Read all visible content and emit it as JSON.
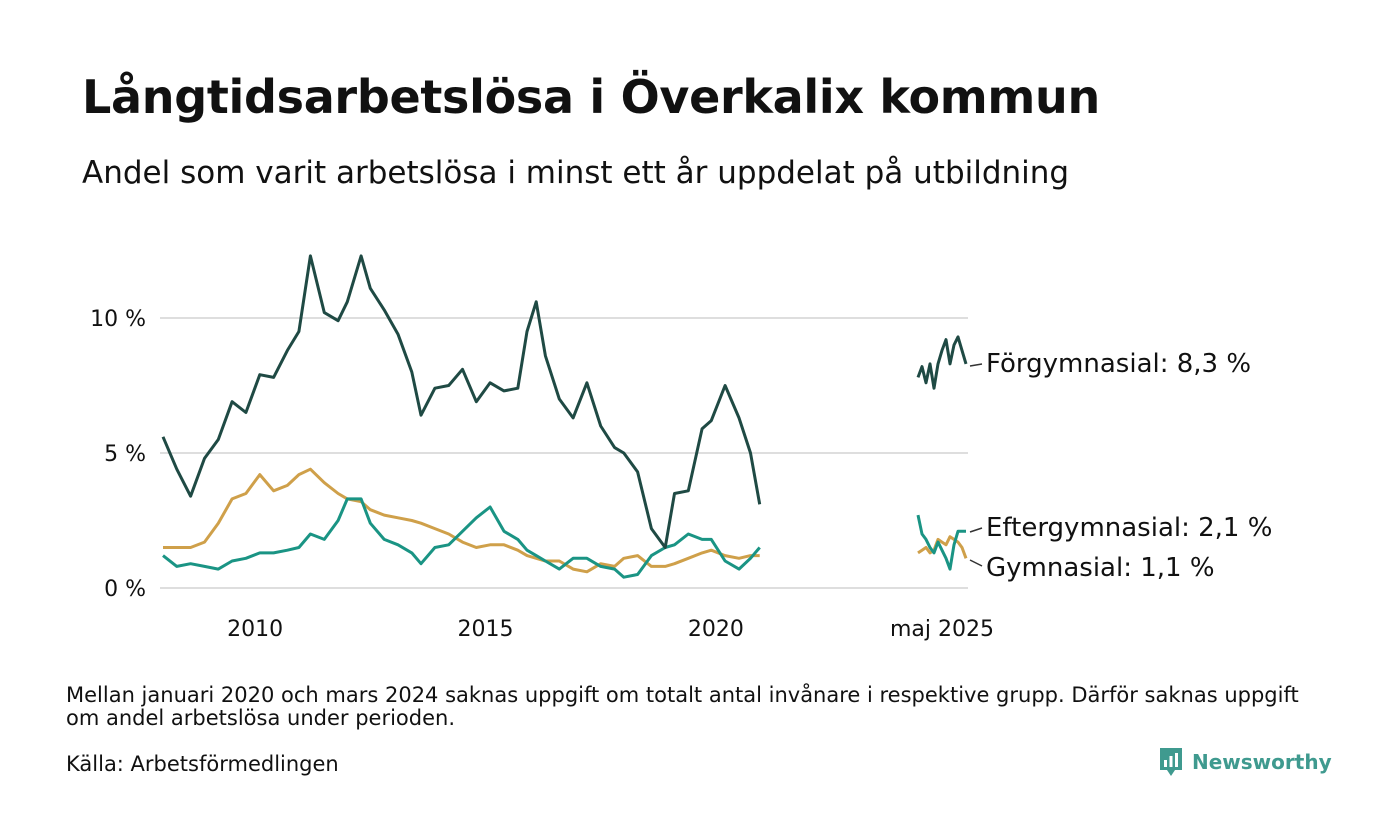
{
  "header": {
    "title": "Långtidsarbetslösa i Överkalix kommun",
    "subtitle": "Andel som varit arbetslösa i minst ett år uppdelat på utbildning"
  },
  "footer": {
    "note": "Mellan januari 2020 och mars 2024 saknas uppgift om totalt antal invånare i respektive grupp. Därför saknas uppgift om andel arbetslösa under perioden.",
    "source": "Källa: Arbetsförmedlingen",
    "brand": "Newsworthy",
    "brand_icon": "newsworthy-logo-icon"
  },
  "chart_data": {
    "type": "line",
    "x_unit": "year (decimal)",
    "ylim": [
      0,
      13
    ],
    "y_ticks": [
      {
        "value": 0,
        "label": "0 %"
      },
      {
        "value": 5,
        "label": "5 %"
      },
      {
        "value": 10,
        "label": "10 %"
      }
    ],
    "x_ticks": [
      {
        "value": 2010,
        "label": "2010"
      },
      {
        "value": 2015,
        "label": "2015"
      },
      {
        "value": 2020,
        "label": "2020"
      }
    ],
    "latest_label": "maj 2025",
    "grid": true,
    "segments": [
      {
        "x_start": 2008.0,
        "x_end": 2021.0
      },
      {
        "x_start": 2024.2,
        "x_end": 2025.4
      }
    ],
    "series": [
      {
        "name": "Förgymnasial",
        "end_label": "Förgymnasial: 8,3 %",
        "color": "#1f4a44",
        "x": [
          2008.0,
          2008.3,
          2008.6,
          2008.9,
          2009.2,
          2009.5,
          2009.8,
          2010.1,
          2010.4,
          2010.7,
          2010.95,
          2011.2,
          2011.5,
          2011.8,
          2012.0,
          2012.3,
          2012.5,
          2012.8,
          2013.1,
          2013.4,
          2013.6,
          2013.9,
          2014.2,
          2014.5,
          2014.8,
          2015.1,
          2015.4,
          2015.7,
          2015.9,
          2016.1,
          2016.3,
          2016.6,
          2016.9,
          2017.2,
          2017.5,
          2017.8,
          2018.0,
          2018.3,
          2018.6,
          2018.9,
          2019.1,
          2019.4,
          2019.7,
          2019.9,
          2020.2,
          2020.5,
          2020.75,
          2020.95
        ],
        "y": [
          5.6,
          4.4,
          3.4,
          4.8,
          5.5,
          6.9,
          6.5,
          7.9,
          7.8,
          8.8,
          9.5,
          12.3,
          10.2,
          9.9,
          10.6,
          12.3,
          11.1,
          10.3,
          9.4,
          8.0,
          6.4,
          7.4,
          7.5,
          8.1,
          6.9,
          7.6,
          7.3,
          7.4,
          9.5,
          10.6,
          8.6,
          7.0,
          6.3,
          7.6,
          6.0,
          5.2,
          5.0,
          4.3,
          2.2,
          1.5,
          3.5,
          3.6,
          5.9,
          6.2,
          7.5,
          6.3,
          5.0,
          3.1
        ]
      },
      {
        "name": "Eftergymnasial",
        "end_label": "Eftergymnasial: 2,1 %",
        "color": "#1a9484",
        "x": [
          2008.0,
          2008.3,
          2008.6,
          2008.9,
          2009.2,
          2009.5,
          2009.8,
          2010.1,
          2010.4,
          2010.7,
          2010.95,
          2011.2,
          2011.5,
          2011.8,
          2012.0,
          2012.3,
          2012.5,
          2012.8,
          2013.1,
          2013.4,
          2013.6,
          2013.9,
          2014.2,
          2014.5,
          2014.8,
          2015.1,
          2015.4,
          2015.7,
          2015.9,
          2016.1,
          2016.3,
          2016.6,
          2016.9,
          2017.2,
          2017.5,
          2017.8,
          2018.0,
          2018.3,
          2018.6,
          2018.9,
          2019.1,
          2019.4,
          2019.7,
          2019.9,
          2020.2,
          2020.5,
          2020.75,
          2020.95
        ],
        "y": [
          1.2,
          0.8,
          0.9,
          0.8,
          0.7,
          1.0,
          1.1,
          1.3,
          1.3,
          1.4,
          1.5,
          2.0,
          1.8,
          2.5,
          3.3,
          3.3,
          2.4,
          1.8,
          1.6,
          1.3,
          0.9,
          1.5,
          1.6,
          2.1,
          2.6,
          3.0,
          2.1,
          1.8,
          1.4,
          1.2,
          1.0,
          0.7,
          1.1,
          1.1,
          0.8,
          0.7,
          0.4,
          0.5,
          1.2,
          1.5,
          1.6,
          2.0,
          1.8,
          1.8,
          1.0,
          0.7,
          1.1,
          1.5
        ]
      },
      {
        "name": "Gymnasial",
        "end_label": "Gymnasial: 1,1 %",
        "color": "#cfa04a",
        "x": [
          2008.0,
          2008.3,
          2008.6,
          2008.9,
          2009.2,
          2009.5,
          2009.8,
          2010.1,
          2010.4,
          2010.7,
          2010.95,
          2011.2,
          2011.5,
          2011.8,
          2012.0,
          2012.3,
          2012.5,
          2012.8,
          2013.1,
          2013.4,
          2013.6,
          2013.9,
          2014.2,
          2014.5,
          2014.8,
          2015.1,
          2015.4,
          2015.7,
          2015.9,
          2016.1,
          2016.3,
          2016.6,
          2016.9,
          2017.2,
          2017.5,
          2017.8,
          2018.0,
          2018.3,
          2018.6,
          2018.9,
          2019.1,
          2019.4,
          2019.7,
          2019.9,
          2020.2,
          2020.5,
          2020.75,
          2020.95
        ],
        "y": [
          1.5,
          1.5,
          1.5,
          1.7,
          2.4,
          3.3,
          3.5,
          4.2,
          3.6,
          3.8,
          4.2,
          4.4,
          3.9,
          3.5,
          3.3,
          3.2,
          2.9,
          2.7,
          2.6,
          2.5,
          2.4,
          2.2,
          2.0,
          1.7,
          1.5,
          1.6,
          1.6,
          1.4,
          1.2,
          1.1,
          1.0,
          1.0,
          0.7,
          0.6,
          0.9,
          0.8,
          1.1,
          1.2,
          0.8,
          0.8,
          0.9,
          1.1,
          1.3,
          1.4,
          1.2,
          1.1,
          1.2,
          1.2
        ]
      }
    ],
    "recent": [
      {
        "name": "Förgymnasial",
        "x": [
          2024.2,
          2024.3,
          2024.4,
          2024.5,
          2024.6,
          2024.7,
          2024.8,
          2024.9,
          2025.0,
          2025.1,
          2025.2,
          2025.3,
          2025.4
        ],
        "y": [
          7.8,
          8.2,
          7.6,
          8.3,
          7.4,
          8.3,
          8.8,
          9.2,
          8.3,
          9.0,
          9.3,
          8.8,
          8.3
        ]
      },
      {
        "name": "Eftergymnasial",
        "x": [
          2024.2,
          2024.3,
          2024.4,
          2024.5,
          2024.6,
          2024.7,
          2024.8,
          2024.9,
          2025.0,
          2025.1,
          2025.2,
          2025.3,
          2025.4
        ],
        "y": [
          2.7,
          2.0,
          1.8,
          1.5,
          1.3,
          1.7,
          1.4,
          1.1,
          0.7,
          1.6,
          2.1,
          2.1,
          2.1
        ]
      },
      {
        "name": "Gymnasial",
        "x": [
          2024.2,
          2024.3,
          2024.4,
          2024.5,
          2024.6,
          2024.7,
          2024.8,
          2024.9,
          2025.0,
          2025.1,
          2025.2,
          2025.3,
          2025.4
        ],
        "y": [
          1.3,
          1.4,
          1.5,
          1.3,
          1.4,
          1.8,
          1.7,
          1.6,
          1.9,
          1.8,
          1.7,
          1.5,
          1.1
        ]
      }
    ]
  }
}
